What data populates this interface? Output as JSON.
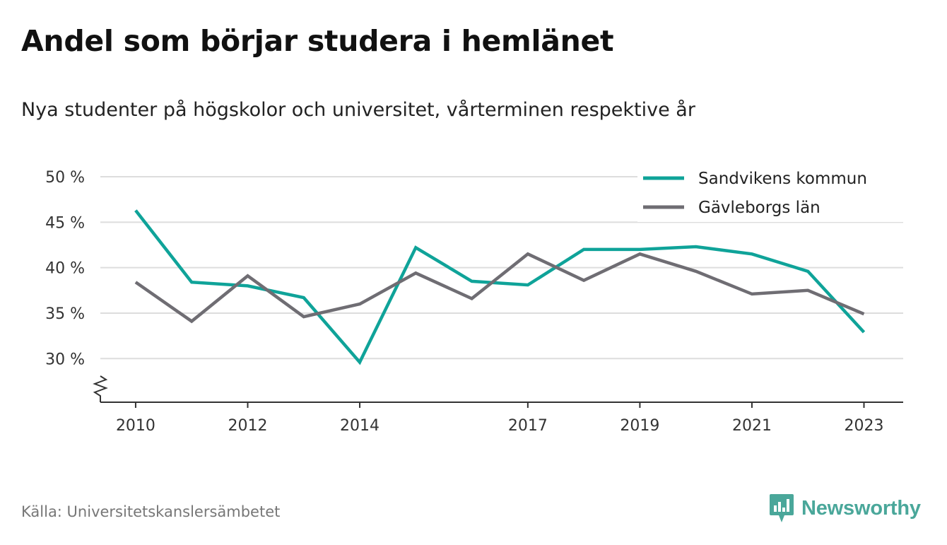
{
  "title": "Andel som börjar studera i hemlänet",
  "subtitle": "Nya studenter på högskolor och universitet, vårterminen respektive år",
  "source": "Källa: Universitetskanslersämbetet",
  "brand": {
    "name": "Newsworthy",
    "icon": "newsworthy-logo-icon",
    "color": "#4aa79a"
  },
  "chart_data": {
    "type": "line",
    "x": [
      2010,
      2011,
      2012,
      2013,
      2014,
      2015,
      2016,
      2017,
      2018,
      2019,
      2020,
      2021,
      2022,
      2023
    ],
    "x_tick_values": [
      2010,
      2012,
      2014,
      2017,
      2019,
      2021,
      2023
    ],
    "x_tick_labels": [
      "2010",
      "2012",
      "2014",
      "2017",
      "2019",
      "2021",
      "2023"
    ],
    "y_tick_values": [
      30,
      35,
      40,
      45,
      50
    ],
    "y_tick_labels": [
      "30 %",
      "35 %",
      "40 %",
      "45 %",
      "50 %"
    ],
    "ylim": [
      25,
      50
    ],
    "y_axis_break": true,
    "grid": true,
    "legend_position": "top-right",
    "series": [
      {
        "name": "Sandvikens kommun",
        "color": "#0fa399",
        "values": [
          46.3,
          38.4,
          38.0,
          36.7,
          29.6,
          42.2,
          38.5,
          38.1,
          42.0,
          42.0,
          42.3,
          41.5,
          39.6,
          32.9
        ]
      },
      {
        "name": "Gävleborgs län",
        "color": "#6f6d73",
        "values": [
          38.4,
          34.1,
          39.1,
          34.6,
          36.0,
          39.4,
          36.6,
          41.5,
          38.6,
          41.5,
          39.6,
          37.1,
          37.5,
          34.9
        ]
      }
    ]
  }
}
